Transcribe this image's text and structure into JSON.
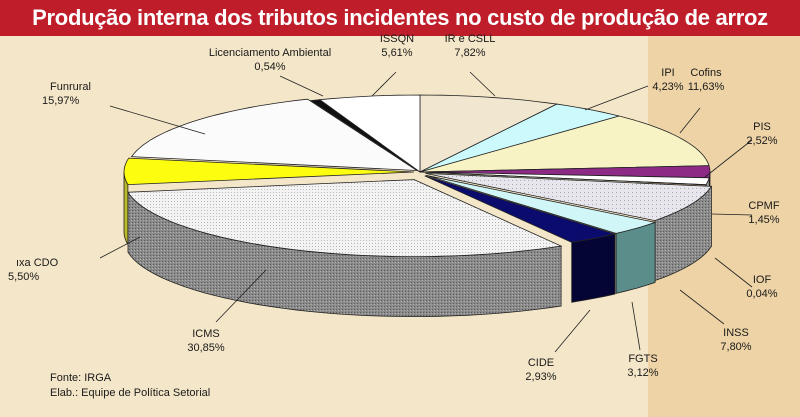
{
  "title": "Produção interna dos tributos incidentes no custo de produção de arroz",
  "chart_data": {
    "type": "pie",
    "variant": "3d-exploded",
    "title": "Produção interna dos tributos incidentes no custo de produção de arroz",
    "slices": [
      {
        "name": "IR e CSLL",
        "value_label": "7,82%",
        "value": 7.82,
        "color": "#f1e6d0"
      },
      {
        "name": "IPI",
        "value_label": "4,23%",
        "value": 4.23,
        "color": "#ccfafc"
      },
      {
        "name": "Cofins",
        "value_label": "11,63%",
        "value": 11.63,
        "color": "#f8f3c4"
      },
      {
        "name": "PIS",
        "value_label": "2,52%",
        "value": 2.52,
        "color": "#8c2a86"
      },
      {
        "name": "CPMF",
        "value_label": "1,45%",
        "value": 1.45,
        "color": "#ffffff"
      },
      {
        "name": "IOF",
        "value_label": "0,04%",
        "value": 0.04,
        "color": "#2a2a2a"
      },
      {
        "name": "INSS",
        "value_label": "7,80%",
        "value": 7.8,
        "color": "#e3e3e8"
      },
      {
        "name": "FGTS",
        "value_label": "3,12%",
        "value": 3.12,
        "color": "#d0f6f8"
      },
      {
        "name": "CIDE",
        "value_label": "2,93%",
        "value": 2.93,
        "color": "#0b0b6e"
      },
      {
        "name": "ICMS",
        "value_label": "30,85%",
        "value": 30.85,
        "color": "#f0f0f0"
      },
      {
        "name": "ıxa CDO",
        "value_label": "5,50%",
        "value": 5.5,
        "color": "#fdfd10"
      },
      {
        "name": "Funrural",
        "value_label": "15,97%",
        "value": 15.97,
        "color": "#fbfbfb"
      },
      {
        "name": "Licenciamento Ambiental",
        "value_label": "0,54%",
        "value": 0.54,
        "color": "#101010"
      },
      {
        "name": "ISSQN",
        "value_label": "5,61%",
        "value": 5.61,
        "color": "#ffffff"
      }
    ]
  },
  "footer": {
    "source": "Fonte: IRGA",
    "credit": "Elab.: Equipe de Política Setorial"
  }
}
